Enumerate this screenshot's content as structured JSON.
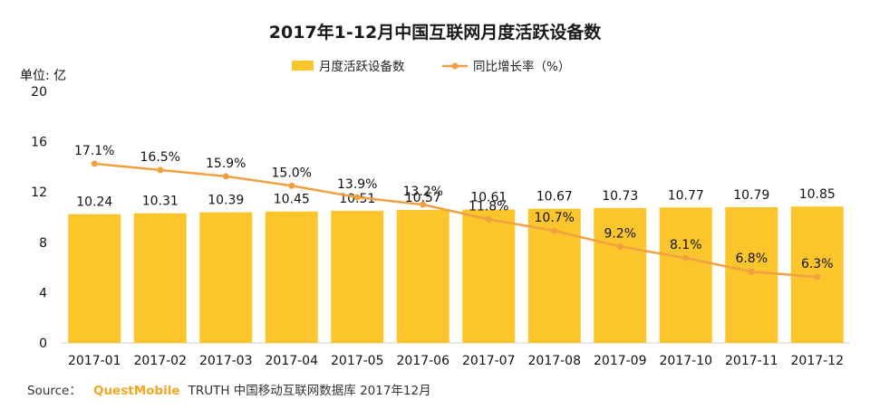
{
  "chart_data": {
    "type": "bar",
    "title": "2017年1-12月中国互联网月度活跃设备数",
    "unit_label": "单位: 亿",
    "categories": [
      "2017-01",
      "2017-02",
      "2017-03",
      "2017-04",
      "2017-05",
      "2017-06",
      "2017-07",
      "2017-08",
      "2017-09",
      "2017-10",
      "2017-11",
      "2017-12"
    ],
    "series": [
      {
        "name": "月度活跃设备数",
        "type": "bar",
        "color": "#fcc52b",
        "values": [
          10.24,
          10.31,
          10.39,
          10.45,
          10.51,
          10.57,
          10.61,
          10.67,
          10.73,
          10.77,
          10.79,
          10.85
        ],
        "labels": [
          "10.24",
          "10.31",
          "10.39",
          "10.45",
          "10.51",
          "10.57",
          "10.61",
          "10.67",
          "10.73",
          "10.77",
          "10.79",
          "10.85"
        ]
      },
      {
        "name": "同比增长率（%）",
        "type": "line",
        "color": "#f0a040",
        "values": [
          17.1,
          16.5,
          15.9,
          15.0,
          13.9,
          13.2,
          11.8,
          10.7,
          9.2,
          8.1,
          6.8,
          6.3
        ],
        "labels": [
          "17.1%",
          "16.5%",
          "15.9%",
          "15.0%",
          "13.9%",
          "13.2%",
          "11.8%",
          "10.7%",
          "9.2%",
          "8.1%",
          "6.8%",
          "6.3%"
        ]
      }
    ],
    "y_ticks": [
      "0",
      "4",
      "8",
      "12",
      "16",
      "20"
    ],
    "ylim": [
      0,
      20
    ],
    "line_ylim": [
      0,
      24
    ],
    "legend_position": "top-center"
  },
  "source": {
    "prefix": "Source：",
    "brand": "QuestMobile",
    "text": "TRUTH 中国移动互联网数据库 2017年12月"
  }
}
